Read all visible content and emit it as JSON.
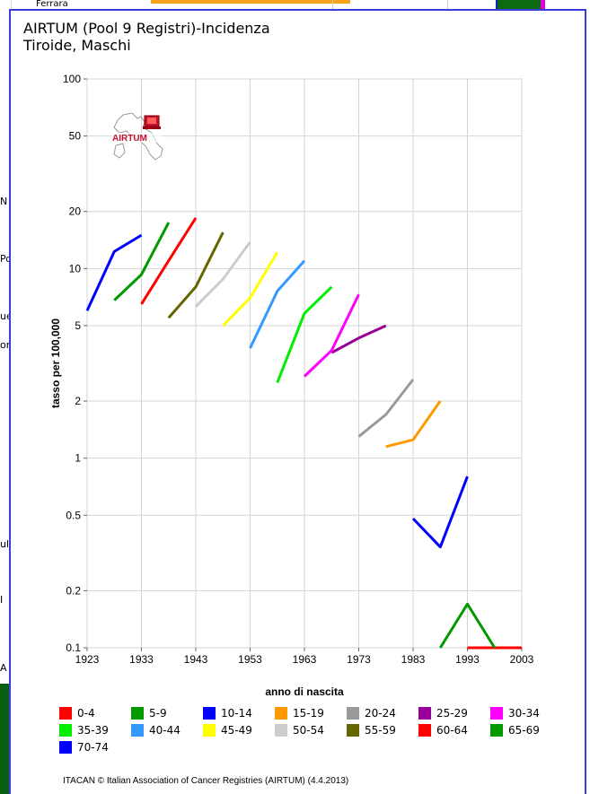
{
  "window": {
    "title_line1": "AIRTUM (Pool 9 Registri)-Incidenza",
    "title_line2": "Tiroide, Maschi"
  },
  "background": {
    "ferrara_label": "Ferrara",
    "left_letters": [
      "N",
      "Po",
      "ue",
      "or",
      "ul",
      "I",
      "A"
    ]
  },
  "logo": {
    "text": "AIRTUM",
    "accent_color": "#c8102e"
  },
  "footer": {
    "text": "ITACAN © Italian Association of Cancer Registries (AIRTUM) (4.4.2013)"
  },
  "chart_data": {
    "type": "line",
    "xlabel": "anno di nascita",
    "ylabel": "tasso per 100,000",
    "yscale": "log",
    "xlim": [
      1923,
      2003
    ],
    "ylim": [
      0.1,
      100
    ],
    "x_ticks": [
      1923,
      1933,
      1943,
      1953,
      1963,
      1973,
      1983,
      1993,
      2003
    ],
    "y_ticks": [
      {
        "value": 0.1,
        "label": "0.1"
      },
      {
        "value": 0.2,
        "label": "0.2"
      },
      {
        "value": 0.5,
        "label": "0.5"
      },
      {
        "value": 1,
        "label": "1"
      },
      {
        "value": 2,
        "label": "2"
      },
      {
        "value": 5,
        "label": "5"
      },
      {
        "value": 10,
        "label": "10"
      },
      {
        "value": 20,
        "label": "20"
      },
      {
        "value": 50,
        "label": "50"
      },
      {
        "value": 100,
        "label": "100"
      }
    ],
    "grid": true,
    "legend_position": "bottom",
    "series": [
      {
        "name": "0-4",
        "color": "#ff0000",
        "points": [
          [
            1993,
            0.1
          ],
          [
            1998,
            0.1
          ],
          [
            2003,
            0.1
          ]
        ]
      },
      {
        "name": "5-9",
        "color": "#009900",
        "points": []
      },
      {
        "name": "10-14",
        "color": "#0000ff",
        "points": [
          [
            1983,
            0.48
          ],
          [
            1988,
            0.34
          ],
          [
            1993,
            0.8
          ]
        ]
      },
      {
        "name": "15-19",
        "color": "#ff9900",
        "points": [
          [
            1978,
            1.15
          ],
          [
            1983,
            1.25
          ],
          [
            1988,
            2.0
          ]
        ]
      },
      {
        "name": "20-24",
        "color": "#999999",
        "points": [
          [
            1973,
            1.3
          ],
          [
            1978,
            1.7
          ],
          [
            1983,
            2.6
          ]
        ]
      },
      {
        "name": "25-29",
        "color": "#990099",
        "points": [
          [
            1968,
            3.6
          ],
          [
            1973,
            4.3
          ],
          [
            1978,
            5.0
          ]
        ]
      },
      {
        "name": "30-34",
        "color": "#ff00ff",
        "points": [
          [
            1963,
            2.7
          ],
          [
            1968,
            3.7
          ],
          [
            1973,
            7.3
          ]
        ]
      },
      {
        "name": "35-39",
        "color": "#00ee00",
        "points": [
          [
            1958,
            2.5
          ],
          [
            1963,
            5.8
          ],
          [
            1968,
            8.0
          ]
        ]
      },
      {
        "name": "40-44",
        "color": "#3399ff",
        "points": [
          [
            1953,
            3.8
          ],
          [
            1958,
            7.6
          ],
          [
            1963,
            11.0
          ]
        ]
      },
      {
        "name": "45-49",
        "color": "#ffff00",
        "points": [
          [
            1948,
            5.0
          ],
          [
            1953,
            7.0
          ],
          [
            1958,
            12.2
          ]
        ]
      },
      {
        "name": "50-54",
        "color": "#cccccc",
        "points": [
          [
            1943,
            6.3
          ],
          [
            1948,
            8.8
          ],
          [
            1953,
            13.8
          ]
        ]
      },
      {
        "name": "55-59",
        "color": "#666600",
        "points": [
          [
            1938,
            5.5
          ],
          [
            1943,
            8.0
          ],
          [
            1948,
            15.5
          ]
        ]
      },
      {
        "name": "60-64",
        "color": "#ff0000",
        "points": [
          [
            1933,
            6.5
          ],
          [
            1938,
            11.0
          ],
          [
            1943,
            18.5
          ]
        ]
      },
      {
        "name": "65-69",
        "color": "#009900",
        "points": [
          [
            1928,
            6.8
          ],
          [
            1933,
            9.3
          ],
          [
            1938,
            17.5
          ],
          [
            1988,
            0.1
          ],
          [
            1993,
            0.17
          ],
          [
            1998,
            0.1
          ]
        ]
      },
      {
        "name": "70-74",
        "color": "#0000ff",
        "points": [
          [
            1923,
            6.0
          ],
          [
            1928,
            12.3
          ],
          [
            1933,
            15.0
          ]
        ]
      }
    ]
  }
}
